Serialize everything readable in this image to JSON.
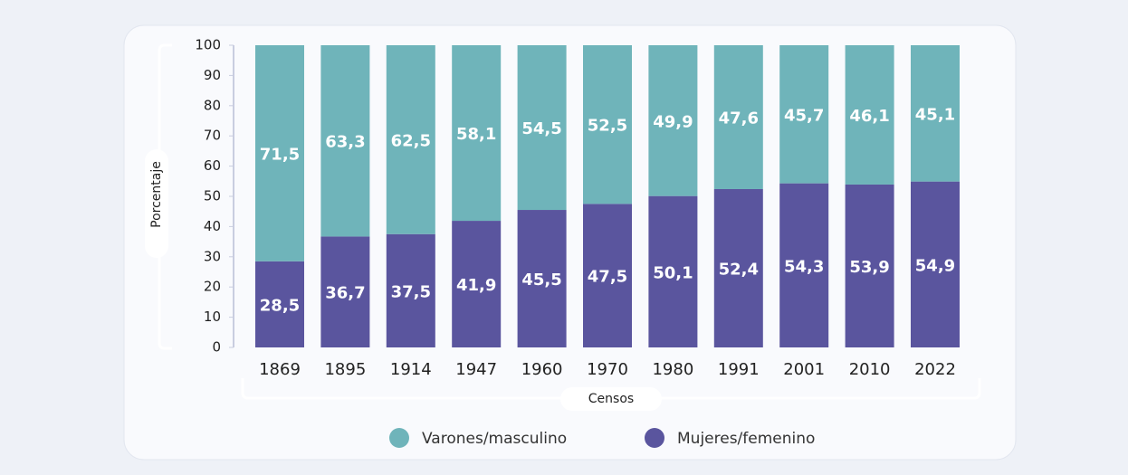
{
  "chart_data": {
    "type": "stacked_bar",
    "y_label": "Porcentaje",
    "x_label": "Censos",
    "categories": [
      "1869",
      "1895",
      "1914",
      "1947",
      "1960",
      "1970",
      "1980",
      "1991",
      "2001",
      "2010",
      "2022"
    ],
    "series": [
      {
        "name": "Varones/masculino",
        "color": "#6fb4ba",
        "values": [
          71.5,
          63.3,
          62.5,
          58.1,
          54.5,
          52.5,
          49.9,
          47.6,
          45.7,
          46.1,
          45.1
        ],
        "value_labels": [
          "71,5",
          "63,3",
          "62,5",
          "58,1",
          "54,5",
          "52,5",
          "49,9",
          "47,6",
          "45,7",
          "46,1",
          "45,1"
        ]
      },
      {
        "name": "Mujeres/femenino",
        "color": "#5a559e",
        "values": [
          28.5,
          36.7,
          37.5,
          41.9,
          45.5,
          47.5,
          50.1,
          52.4,
          54.3,
          53.9,
          54.9
        ],
        "value_labels": [
          "28,5",
          "36,7",
          "37,5",
          "41,9",
          "45,5",
          "47,5",
          "50,1",
          "52,4",
          "54,3",
          "53,9",
          "54,9"
        ]
      }
    ],
    "ylim": [
      0,
      100
    ],
    "yticks": [
      0,
      10,
      20,
      30,
      40,
      50,
      60,
      70,
      80,
      90,
      100
    ],
    "legend": "bottom"
  }
}
